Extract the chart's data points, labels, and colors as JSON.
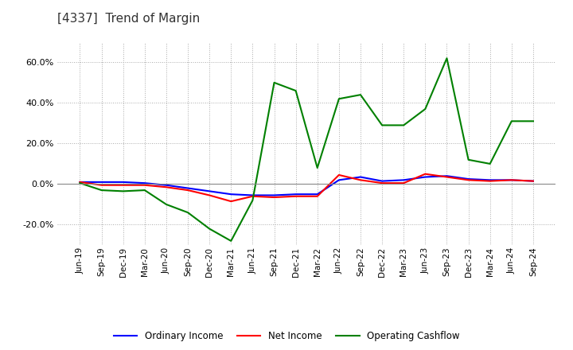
{
  "title": "[4337]  Trend of Margin",
  "title_fontsize": 11,
  "title_color": "#333333",
  "background_color": "#ffffff",
  "plot_bg_color": "#ffffff",
  "grid_color": "#aaaaaa",
  "x_labels": [
    "Jun-19",
    "Sep-19",
    "Dec-19",
    "Mar-20",
    "Jun-20",
    "Sep-20",
    "Dec-20",
    "Mar-21",
    "Jun-21",
    "Sep-21",
    "Dec-21",
    "Mar-22",
    "Jun-22",
    "Sep-22",
    "Dec-22",
    "Mar-23",
    "Jun-23",
    "Sep-23",
    "Dec-23",
    "Mar-24",
    "Jun-24",
    "Sep-24"
  ],
  "ordinary_income": [
    1.0,
    1.0,
    1.0,
    0.5,
    -0.5,
    -2.0,
    -3.5,
    -5.0,
    -5.5,
    -5.5,
    -5.0,
    -5.0,
    2.0,
    3.5,
    1.5,
    2.0,
    3.5,
    4.0,
    2.5,
    2.0,
    2.0,
    1.5
  ],
  "net_income": [
    1.0,
    -0.5,
    -0.5,
    -0.5,
    -1.5,
    -3.0,
    -5.5,
    -8.5,
    -6.0,
    -6.5,
    -6.0,
    -6.0,
    4.5,
    2.0,
    0.5,
    0.5,
    5.0,
    3.5,
    2.0,
    1.5,
    2.0,
    1.5
  ],
  "operating_cashflow": [
    0.5,
    -3.0,
    -3.5,
    -3.0,
    -10.0,
    -14.0,
    -22.0,
    -28.0,
    -8.0,
    50.0,
    46.0,
    8.0,
    42.0,
    44.0,
    29.0,
    29.0,
    37.0,
    62.0,
    12.0,
    10.0,
    31.0,
    31.0
  ],
  "ordinary_income_color": "#0000ff",
  "net_income_color": "#ff0000",
  "operating_cashflow_color": "#008000",
  "line_width": 1.5,
  "ylim": [
    -30,
    70
  ],
  "yticks": [
    -20.0,
    0.0,
    20.0,
    40.0,
    60.0
  ],
  "legend_labels": [
    "Ordinary Income",
    "Net Income",
    "Operating Cashflow"
  ]
}
